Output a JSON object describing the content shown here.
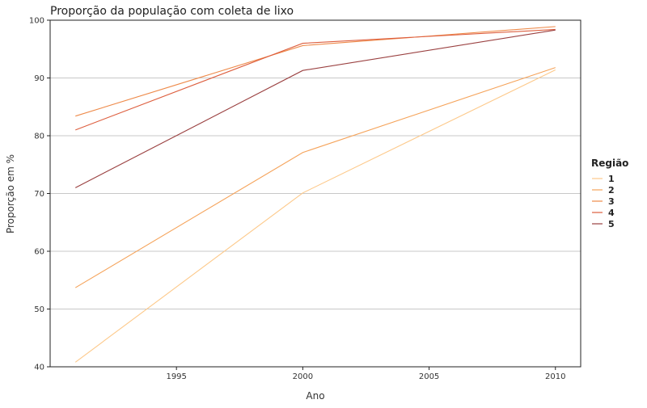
{
  "chart_data": {
    "type": "line",
    "title": "Proporção da população com coleta de lixo",
    "xlabel": "Ano",
    "ylabel": "Proporção em %",
    "x": [
      1991,
      2000,
      2010
    ],
    "xlim": [
      1990,
      2011
    ],
    "ylim": [
      40,
      100
    ],
    "xticks": [
      1995,
      2000,
      2005,
      2010
    ],
    "yticks": [
      40,
      50,
      60,
      70,
      80,
      90,
      100
    ],
    "grid": "horizontal",
    "legend": {
      "title": "Região",
      "placement": "right"
    },
    "series": [
      {
        "name": "1",
        "color": "#fdc98a",
        "values": [
          40.8,
          70.1,
          91.4
        ]
      },
      {
        "name": "2",
        "color": "#f5a35a",
        "values": [
          53.7,
          77.1,
          91.8
        ]
      },
      {
        "name": "3",
        "color": "#ee8a4a",
        "values": [
          83.4,
          95.6,
          98.9
        ]
      },
      {
        "name": "4",
        "color": "#dd5e3e",
        "values": [
          81.0,
          96.0,
          98.4
        ]
      },
      {
        "name": "5",
        "color": "#9a4040",
        "values": [
          71.0,
          91.3,
          98.3
        ]
      }
    ]
  }
}
